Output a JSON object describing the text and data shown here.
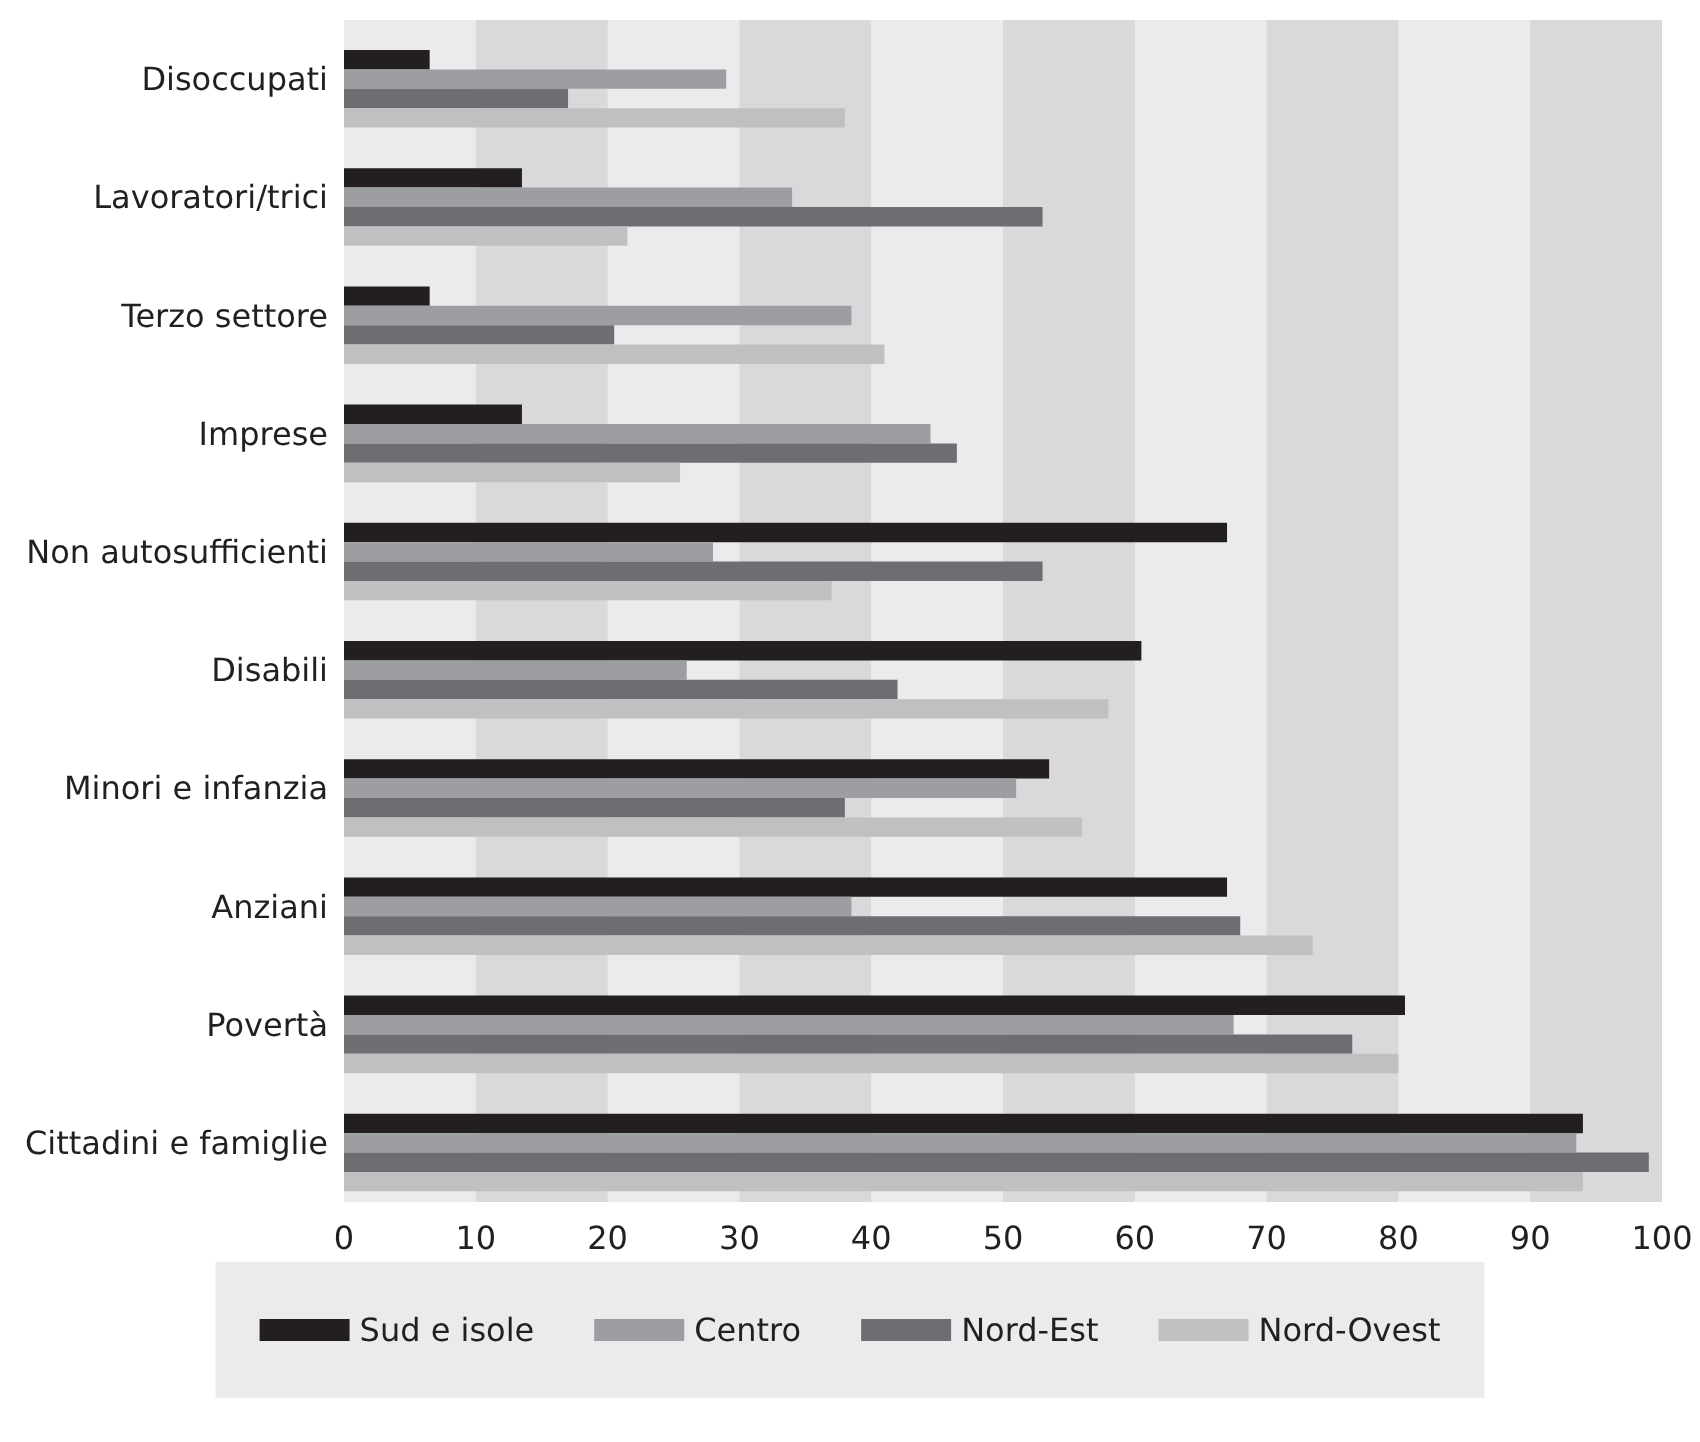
{
  "chart_data": {
    "type": "bar",
    "orientation": "horizontal",
    "categories": [
      "Disoccupati",
      "Lavoratori/trici",
      "Terzo settore",
      "Imprese",
      "Non autosufficienti",
      "Disabili",
      "Minori e infanzia",
      "Anziani",
      "Povertà",
      "Cittadini e famiglie"
    ],
    "series": [
      {
        "name": "Sud e isole",
        "color": "#231f20",
        "values": [
          6.5,
          13.5,
          6.5,
          13.5,
          67,
          60.5,
          53.5,
          67,
          80.5,
          94
        ]
      },
      {
        "name": "Centro",
        "color": "#9d9ea1",
        "values": [
          29,
          34,
          38.5,
          44.5,
          28,
          26,
          51,
          38.5,
          67.5,
          93.5
        ]
      },
      {
        "name": "Nord-Est",
        "color": "#6d6e71",
        "values": [
          17,
          53,
          20.5,
          46.5,
          53,
          42,
          38,
          68,
          76.5,
          99
        ]
      },
      {
        "name": "Nord-Ovest",
        "color": "#bfc0c2",
        "values": [
          38,
          21.5,
          41,
          25.5,
          37,
          58,
          56,
          73.5,
          80,
          94
        ]
      }
    ],
    "xlim": [
      0,
      100
    ],
    "xticks": [
      0,
      10,
      20,
      30,
      40,
      50,
      60,
      70,
      80,
      90,
      100
    ],
    "legend": "bottom",
    "bands": [
      {
        "axis": "x",
        "from": 10,
        "to": 20,
        "color": "#d9d9db"
      },
      {
        "axis": "x",
        "from": 30,
        "to": 40,
        "color": "#d9d9db"
      },
      {
        "axis": "x",
        "from": 50,
        "to": 60,
        "color": "#d9d9db"
      },
      {
        "axis": "x",
        "from": 70,
        "to": 80,
        "color": "#d9d9db"
      },
      {
        "axis": "x",
        "from": 90,
        "to": 100,
        "color": "#d9d9db"
      }
    ]
  }
}
